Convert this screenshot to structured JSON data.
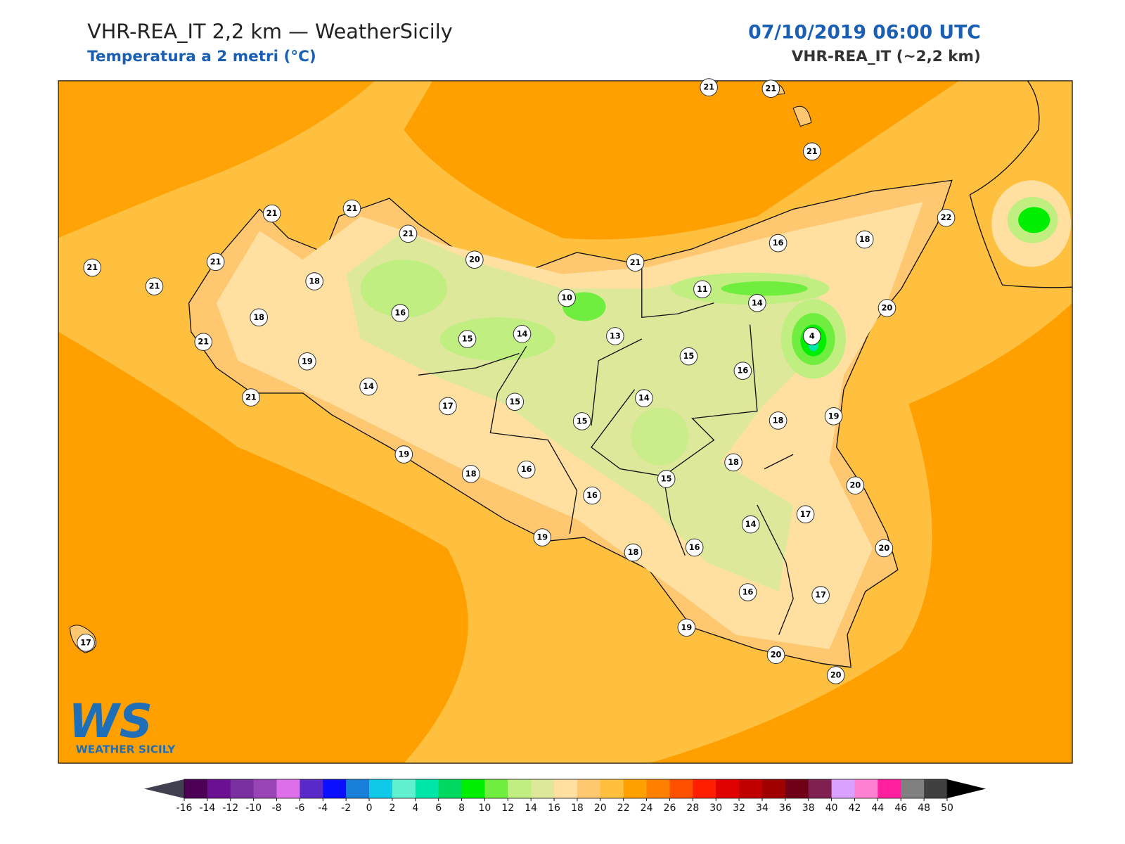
{
  "header": {
    "title": "VHR-REA_IT 2,2 km — WeatherSicily",
    "subtitle": "Temperatura a 2 metri (°C)",
    "datetime": "07/10/2019 06:00 UTC",
    "model": "VHR-REA_IT (~2,2 km)"
  },
  "stations": [
    21,
    21,
    21,
    20,
    21,
    16,
    18,
    22,
    21,
    21,
    21,
    21,
    21,
    21,
    18,
    18,
    21,
    19,
    21,
    16,
    15,
    14,
    10,
    13,
    11,
    14,
    4,
    20,
    15,
    16,
    14,
    17,
    15,
    15,
    14,
    18,
    19,
    19,
    18,
    16,
    16,
    15,
    18,
    20,
    17,
    14,
    19,
    18,
    16,
    20,
    16,
    17,
    19,
    20,
    20,
    17
  ],
  "logo": {
    "mark": "WS",
    "text": "WEATHER SICILY"
  },
  "colorbar": {
    "ticks": [
      -16,
      -14,
      -12,
      -10,
      -8,
      -6,
      -4,
      -2,
      0,
      2,
      4,
      6,
      8,
      10,
      12,
      14,
      16,
      18,
      20,
      22,
      24,
      26,
      28,
      30,
      32,
      34,
      36,
      38,
      40,
      42,
      44,
      46,
      48,
      50
    ],
    "colors": [
      "#4b0055",
      "#6a1090",
      "#7a2fa0",
      "#9a45b5",
      "#dd70e8",
      "#5a2ac8",
      "#0a10ff",
      "#1880d8",
      "#10c8e8",
      "#60f0d0",
      "#00e6a8",
      "#00d860",
      "#00ee00",
      "#70ee40",
      "#c0ee80",
      "#dde89a",
      "#ffe0a0",
      "#ffc870",
      "#ffc040",
      "#ffa000",
      "#ff8000",
      "#ff5000",
      "#ff1e00",
      "#e00000",
      "#c00000",
      "#a00000",
      "#700018",
      "#802050",
      "#d8a0ff",
      "#ff80d0",
      "#ff20a0",
      "#808080",
      "#404040"
    ],
    "extend_colors": [
      "#404050",
      "#000000"
    ]
  }
}
